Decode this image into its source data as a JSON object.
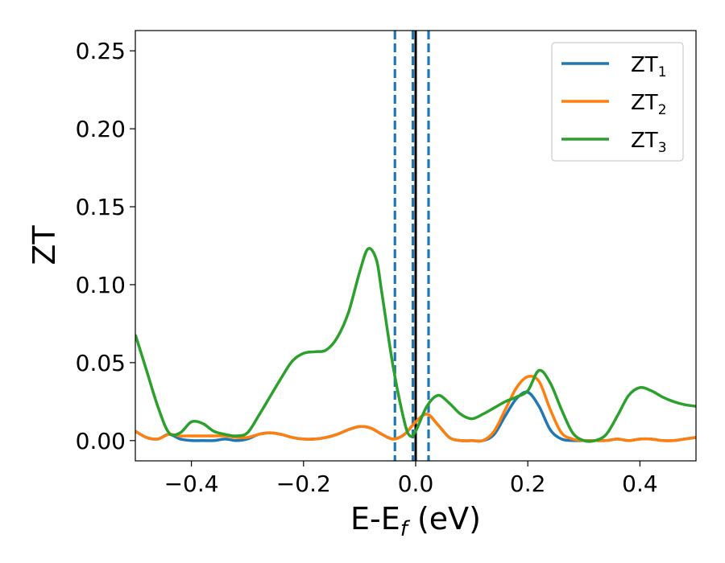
{
  "chart_data": {
    "type": "line",
    "xlabel": "E-E",
    "xlabel_sub": "f",
    "xlabel_unit": " (eV)",
    "ylabel": "ZT",
    "xlim": [
      -0.5,
      0.5
    ],
    "ylim": [
      -0.013,
      0.263
    ],
    "xticks": [
      -0.4,
      -0.2,
      0.0,
      0.2,
      0.4
    ],
    "xtick_labels": [
      "−0.4",
      "−0.2",
      "0.0",
      "0.2",
      "0.4"
    ],
    "yticks": [
      0.0,
      0.05,
      0.1,
      0.15,
      0.2,
      0.25
    ],
    "ytick_labels": [
      "0.00",
      "0.05",
      "0.10",
      "0.15",
      "0.20",
      "0.25"
    ],
    "grid": false,
    "legend_position": "top-right",
    "vertical_lines": [
      {
        "x": -0.037,
        "style": "dashed",
        "color": "#1f77b4"
      },
      {
        "x": -0.005,
        "style": "dashed",
        "color": "#1f77b4"
      },
      {
        "x": 0.0,
        "style": "solid",
        "color": "#000000"
      },
      {
        "x": 0.023,
        "style": "dashed",
        "color": "#1f77b4"
      }
    ],
    "series": [
      {
        "name": "ZT",
        "name_sub": "1",
        "color": "#1f77b4",
        "x": [
          -0.5,
          -0.48,
          -0.46,
          -0.44,
          -0.42,
          -0.4,
          -0.38,
          -0.36,
          -0.34,
          -0.32,
          -0.3,
          -0.28,
          -0.26,
          -0.24,
          -0.22,
          -0.2,
          -0.18,
          -0.16,
          -0.14,
          -0.12,
          -0.1,
          -0.08,
          -0.06,
          -0.04,
          -0.02,
          0.0,
          0.02,
          0.04,
          0.06,
          0.08,
          0.1,
          0.12,
          0.14,
          0.16,
          0.18,
          0.2,
          0.22,
          0.24,
          0.26,
          0.28,
          0.3,
          0.32,
          0.34,
          0.36,
          0.38,
          0.4,
          0.42,
          0.44,
          0.46,
          0.48,
          0.5
        ],
        "y": [
          0.006,
          0.002,
          0.001,
          0.004,
          0.001,
          0.0,
          0.0,
          0.0,
          0.001,
          0.0,
          0.001,
          0.004,
          0.005,
          0.004,
          0.002,
          0.001,
          0.001,
          0.002,
          0.004,
          0.007,
          0.009,
          0.008,
          0.004,
          0.001,
          0.004,
          0.012,
          0.017,
          0.01,
          0.002,
          0.0,
          0.0,
          0.0,
          0.004,
          0.016,
          0.027,
          0.031,
          0.022,
          0.007,
          0.001,
          0.0,
          0.0,
          0.0,
          0.0,
          0.001,
          0.0,
          0.001,
          0.001,
          0.0,
          0.0,
          0.001,
          0.002
        ]
      },
      {
        "name": "ZT",
        "name_sub": "2",
        "color": "#ff7f0e",
        "x": [
          -0.5,
          -0.48,
          -0.46,
          -0.44,
          -0.42,
          -0.4,
          -0.38,
          -0.36,
          -0.34,
          -0.32,
          -0.3,
          -0.28,
          -0.26,
          -0.24,
          -0.22,
          -0.2,
          -0.18,
          -0.16,
          -0.14,
          -0.12,
          -0.1,
          -0.08,
          -0.06,
          -0.04,
          -0.02,
          0.0,
          0.02,
          0.04,
          0.06,
          0.08,
          0.1,
          0.12,
          0.14,
          0.16,
          0.18,
          0.2,
          0.22,
          0.24,
          0.26,
          0.28,
          0.3,
          0.32,
          0.34,
          0.36,
          0.38,
          0.4,
          0.42,
          0.44,
          0.46,
          0.48,
          0.5
        ],
        "y": [
          0.006,
          0.002,
          0.001,
          0.004,
          0.003,
          0.003,
          0.003,
          0.003,
          0.003,
          0.002,
          0.002,
          0.004,
          0.005,
          0.004,
          0.002,
          0.001,
          0.001,
          0.002,
          0.004,
          0.007,
          0.009,
          0.008,
          0.004,
          0.001,
          0.004,
          0.012,
          0.017,
          0.01,
          0.002,
          0.0,
          0.0,
          0.0,
          0.006,
          0.02,
          0.034,
          0.041,
          0.038,
          0.02,
          0.005,
          0.001,
          0.0,
          0.0,
          0.0,
          0.001,
          0.0,
          0.001,
          0.001,
          0.0,
          0.0,
          0.001,
          0.002
        ]
      },
      {
        "name": "ZT",
        "name_sub": "3",
        "color": "#2ca02c",
        "x": [
          -0.5,
          -0.48,
          -0.46,
          -0.44,
          -0.42,
          -0.4,
          -0.38,
          -0.36,
          -0.34,
          -0.32,
          -0.3,
          -0.28,
          -0.26,
          -0.24,
          -0.22,
          -0.2,
          -0.18,
          -0.16,
          -0.14,
          -0.12,
          -0.1,
          -0.085,
          -0.07,
          -0.06,
          -0.04,
          -0.02,
          -0.01,
          0.0,
          0.02,
          0.04,
          0.06,
          0.08,
          0.1,
          0.12,
          0.14,
          0.16,
          0.18,
          0.2,
          0.22,
          0.24,
          0.26,
          0.28,
          0.3,
          0.32,
          0.34,
          0.36,
          0.38,
          0.4,
          0.42,
          0.44,
          0.46,
          0.48,
          0.5
        ],
        "y": [
          0.068,
          0.045,
          0.022,
          0.005,
          0.005,
          0.012,
          0.011,
          0.006,
          0.004,
          0.003,
          0.005,
          0.016,
          0.028,
          0.04,
          0.051,
          0.056,
          0.057,
          0.058,
          0.066,
          0.082,
          0.108,
          0.123,
          0.116,
          0.094,
          0.047,
          0.012,
          0.003,
          0.006,
          0.022,
          0.029,
          0.024,
          0.017,
          0.014,
          0.017,
          0.021,
          0.025,
          0.028,
          0.032,
          0.045,
          0.037,
          0.02,
          0.005,
          0.0,
          0.0,
          0.004,
          0.016,
          0.029,
          0.034,
          0.032,
          0.028,
          0.025,
          0.023,
          0.022
        ]
      }
    ]
  }
}
